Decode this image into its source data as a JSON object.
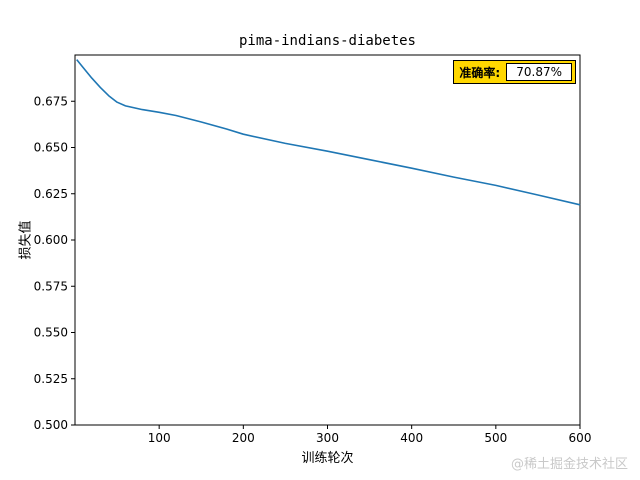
{
  "chart_data": {
    "type": "line",
    "title": "pima-indians-diabetes",
    "xlabel": "训练轮次",
    "ylabel": "损失值",
    "xlim": [
      0,
      600
    ],
    "ylim": [
      0.5,
      0.7
    ],
    "xticks": [
      100,
      200,
      300,
      400,
      500,
      600
    ],
    "yticks": [
      0.5,
      0.525,
      0.55,
      0.575,
      0.6,
      0.625,
      0.65,
      0.675
    ],
    "grid": false,
    "legend_position": "upper right",
    "line_color": "#1f77b4",
    "x": [
      2,
      10,
      20,
      30,
      40,
      50,
      60,
      80,
      100,
      120,
      150,
      180,
      200,
      250,
      300,
      350,
      400,
      450,
      500,
      550,
      600
    ],
    "y": [
      0.6975,
      0.693,
      0.6875,
      0.6825,
      0.678,
      0.6745,
      0.6725,
      0.6705,
      0.669,
      0.6673,
      0.6638,
      0.66,
      0.6572,
      0.6522,
      0.648,
      0.6434,
      0.6388,
      0.634,
      0.6295,
      0.6243,
      0.619
    ]
  },
  "legend": {
    "label": "准确率:",
    "value": "70.87%",
    "bg_color": "#ffd700",
    "border_color": "#000000"
  },
  "watermark": "@稀土掘金技术社区"
}
